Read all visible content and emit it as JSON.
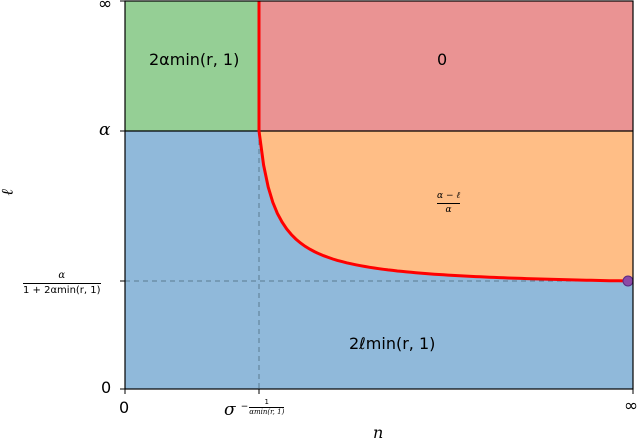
{
  "axes": {
    "xlabel": "n",
    "ylabel": "ℓ",
    "xticks": {
      "zero": "0",
      "inf": "∞",
      "sigma_base": "σ",
      "sigma_exp_minus": "−",
      "sigma_exp_num": "1",
      "sigma_exp_den": "αmin(r, 1)"
    },
    "yticks": {
      "zero": "0",
      "alpha": "α",
      "inf": "∞",
      "thr_num": "α",
      "thr_den": "1 + 2αmin(r, 1)"
    }
  },
  "regions": {
    "green_label": "2αmin(r, 1)",
    "red_label": "0",
    "orange_num": "α − ℓ",
    "orange_den": "α",
    "blue_label": "2ℓmin(r, 1)"
  },
  "colors": {
    "green": "#95cf95",
    "red": "#ea9393",
    "orange": "#ffbe86",
    "blue": "#90b9da",
    "boundary": "#ff0000",
    "dashed": "#5a7a90",
    "dot": "#8c4aa6"
  }
}
